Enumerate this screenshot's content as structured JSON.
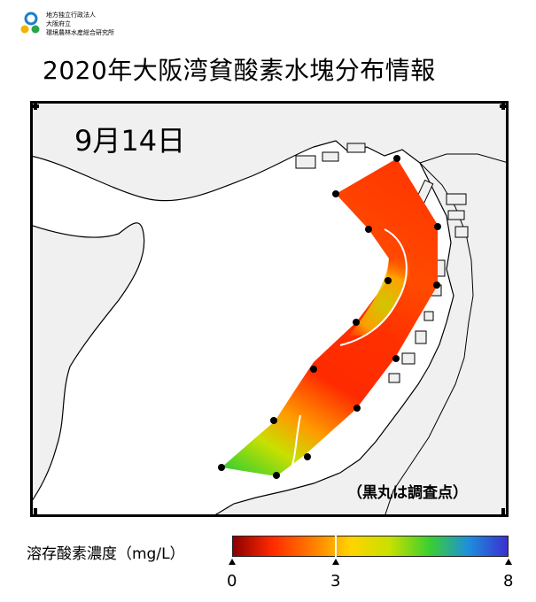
{
  "header": {
    "org_line1": "地方独立行政法人",
    "org_line2": "大阪府立",
    "org_line3": "環境農林水産総合研究所",
    "title": "2020年大阪湾貧酸素水塊分布情報"
  },
  "map": {
    "date_label": "9月14日",
    "note": "（黒丸は調査点）",
    "colors": {
      "sea": "#ffffff",
      "land": "#f0f0f0",
      "frame": "#000000",
      "station": "#000000",
      "contour": "#ffffff"
    }
  },
  "legend": {
    "title": "溶存酸素濃度（mg/L）",
    "ticks": [
      "0",
      "3",
      "8"
    ],
    "tick_values": [
      0,
      3,
      8
    ],
    "colors": [
      "#8b0000",
      "#ff2a00",
      "#ff7a00",
      "#ffd400",
      "#c8e000",
      "#3ccf2f",
      "#1e8fdc",
      "#3b2fd0"
    ]
  }
}
